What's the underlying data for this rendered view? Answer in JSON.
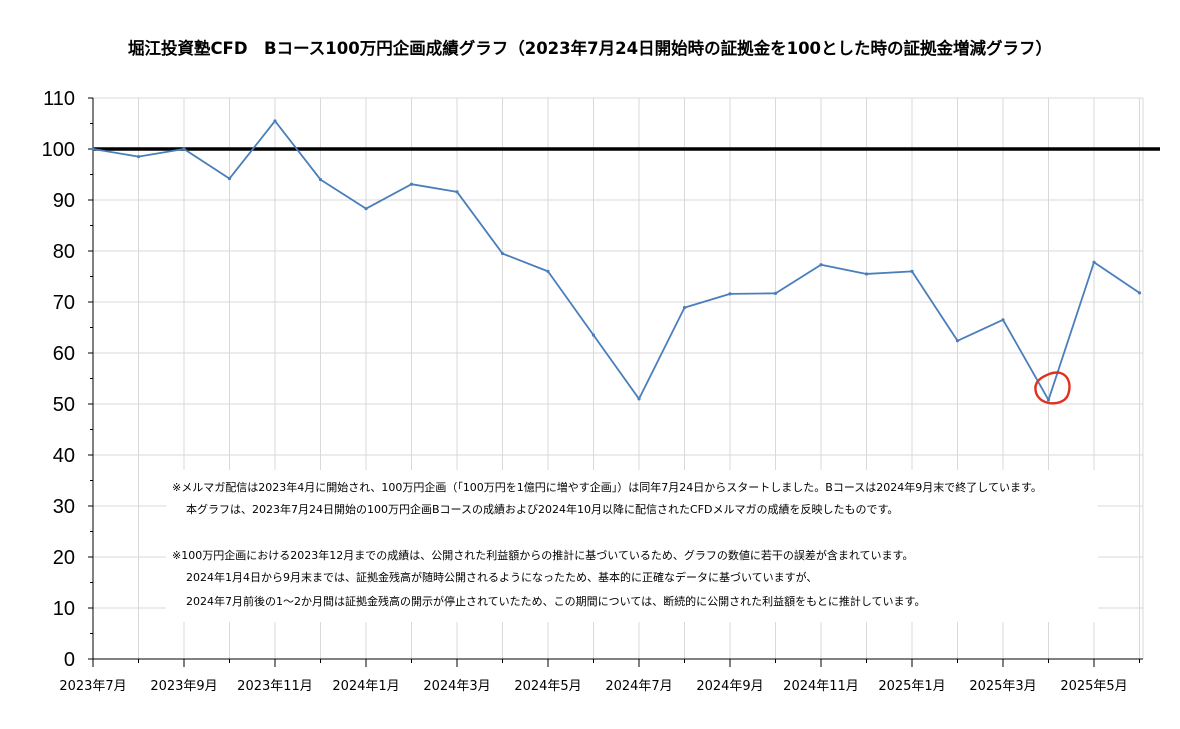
{
  "chart_data": {
    "type": "line",
    "title": "堀江投資塾CFD　Bコース100万円企画成績グラフ（2023年7月24日開始時の証拠金を100とした時の証拠金増減グラフ）",
    "xlabel": "",
    "ylabel": "",
    "ylim": [
      0,
      110
    ],
    "yticks": [
      0,
      10,
      20,
      30,
      40,
      50,
      60,
      70,
      80,
      90,
      100,
      110
    ],
    "grid": true,
    "legend": "none",
    "x_tick_labels": [
      "2023年7月",
      "2023年9月",
      "2023年11月",
      "2024年1月",
      "2024年3月",
      "2024年5月",
      "2024年7月",
      "2024年9月",
      "2024年11月",
      "2025年1月",
      "2025年3月",
      "2025年5月"
    ],
    "x": [
      "2023年7月",
      "2023年8月",
      "2023年9月",
      "2023年10月",
      "2023年11月",
      "2023年12月",
      "2024年1月",
      "2024年2月",
      "2024年3月",
      "2024年4月",
      "2024年5月",
      "2024年6月",
      "2024年7月",
      "2024年8月",
      "2024年9月",
      "2024年10月",
      "2024年11月",
      "2024年12月",
      "2025年1月",
      "2025年2月",
      "2025年3月",
      "2025年4月",
      "2025年5月",
      "2025年6月"
    ],
    "series": [
      {
        "values": [
          100,
          98.5,
          100,
          94.2,
          105.5,
          94,
          88.3,
          93.1,
          91.6,
          79.5,
          76,
          63.5,
          51,
          68.9,
          71.6,
          71.7,
          77.3,
          75.5,
          76,
          62.4,
          66.5,
          50.8,
          77.8,
          71.8
        ],
        "color": "#4a7ebb"
      }
    ],
    "reference_line": {
      "y": 100,
      "color": "#000000"
    },
    "highlight": {
      "x": "2025年4月",
      "y": 50.8,
      "shape": "circle",
      "color": "#e0301e"
    },
    "notes": [
      "※メルマガ配信は2023年4月に開始され、100万円企画（「100万円を1億円に増やす企画」）は同年7月24日からスタートしました。Bコースは2024年9月末で終了しています。",
      "本グラフは、2023年7月24日開始の100万円企画Bコースの成績および2024年10月以降に配信されたCFDメルマガの成績を反映したものです。",
      "※100万円企画における2023年12月までの成績は、公開された利益額からの推計に基づいているため、グラフの数値に若干の誤差が含まれています。",
      "2024年1月4日から9月末までは、証拠金残高が随時公開されるようになったため、基本的に正確なデータに基づいていますが、",
      "2024年7月前後の1〜2か月間は証拠金残高の開示が停止されていたため、この期間については、断続的に公開された利益額をもとに推計しています。"
    ]
  }
}
